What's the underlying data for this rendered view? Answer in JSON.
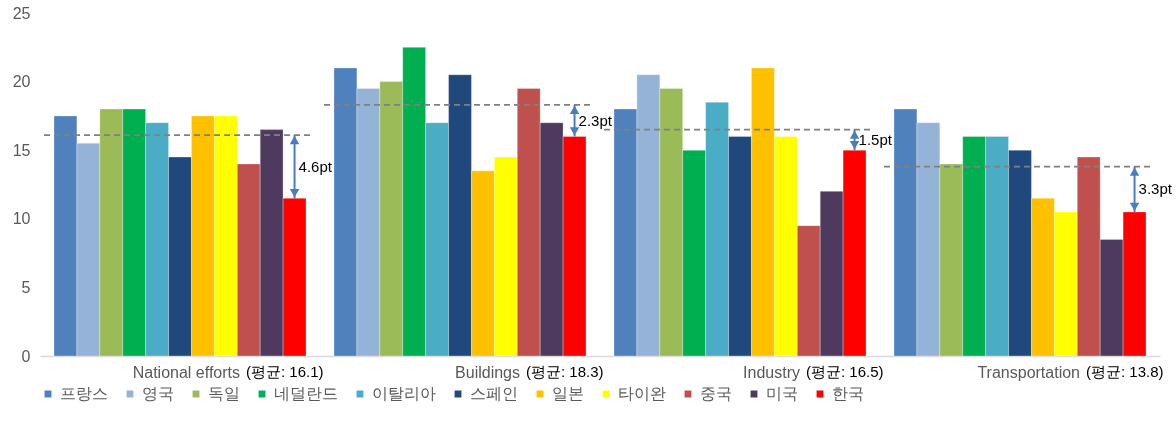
{
  "chart_data": {
    "type": "bar",
    "categories": [
      "National efforts",
      "Buildings",
      "Industry",
      "Transportation"
    ],
    "series": [
      {
        "name": "프랑스",
        "color": "#4f81bd",
        "values": [
          17.5,
          21,
          18,
          18
        ]
      },
      {
        "name": "영국",
        "color": "#95b3d7",
        "values": [
          15.5,
          19.5,
          20.5,
          17
        ]
      },
      {
        "name": "독일",
        "color": "#9bbb59",
        "values": [
          18,
          20,
          19.5,
          14
        ]
      },
      {
        "name": "네덜란드",
        "color": "#00b050",
        "values": [
          18,
          22.5,
          15,
          16
        ]
      },
      {
        "name": "이탈리아",
        "color": "#4bacc6",
        "values": [
          17,
          17,
          18.5,
          16
        ]
      },
      {
        "name": "스페인",
        "color": "#1f497d",
        "values": [
          14.5,
          20.5,
          16,
          15
        ]
      },
      {
        "name": "일본",
        "color": "#ffc000",
        "values": [
          17.5,
          13.5,
          21,
          11.5
        ]
      },
      {
        "name": "타이완",
        "color": "#ffff00",
        "values": [
          17.5,
          14.5,
          16,
          10.5
        ]
      },
      {
        "name": "중국",
        "color": "#c0504d",
        "values": [
          14,
          19.5,
          9.5,
          14.5
        ]
      },
      {
        "name": "미국",
        "color": "#4f3a5f",
        "values": [
          16.5,
          17,
          12,
          8.5
        ]
      },
      {
        "name": "한국",
        "color": "#ff0000",
        "values": [
          11.5,
          16,
          15,
          10.5
        ]
      }
    ],
    "ylim": [
      0,
      25
    ],
    "yticks": [
      0,
      5,
      10,
      15,
      20,
      25
    ],
    "legend": "bottom",
    "ref_lines": [
      {
        "axis": "y",
        "value": 16.1,
        "color": "#808080",
        "line_style": "dashed"
      },
      {
        "axis": "y",
        "value": 18.3,
        "color": "#808080",
        "line_style": "dashed"
      },
      {
        "axis": "y",
        "value": 16.5,
        "color": "#808080",
        "line_style": "dashed"
      },
      {
        "axis": "y",
        "value": 13.8,
        "color": "#808080",
        "line_style": "dashed"
      }
    ],
    "annotations": [
      "(평균: 16.1)",
      "(평균: 18.3)",
      "(평균: 16.5)",
      "(평균: 13.8)",
      "4.6pt",
      "2.3pt",
      "1.5pt",
      "3.3pt"
    ]
  }
}
